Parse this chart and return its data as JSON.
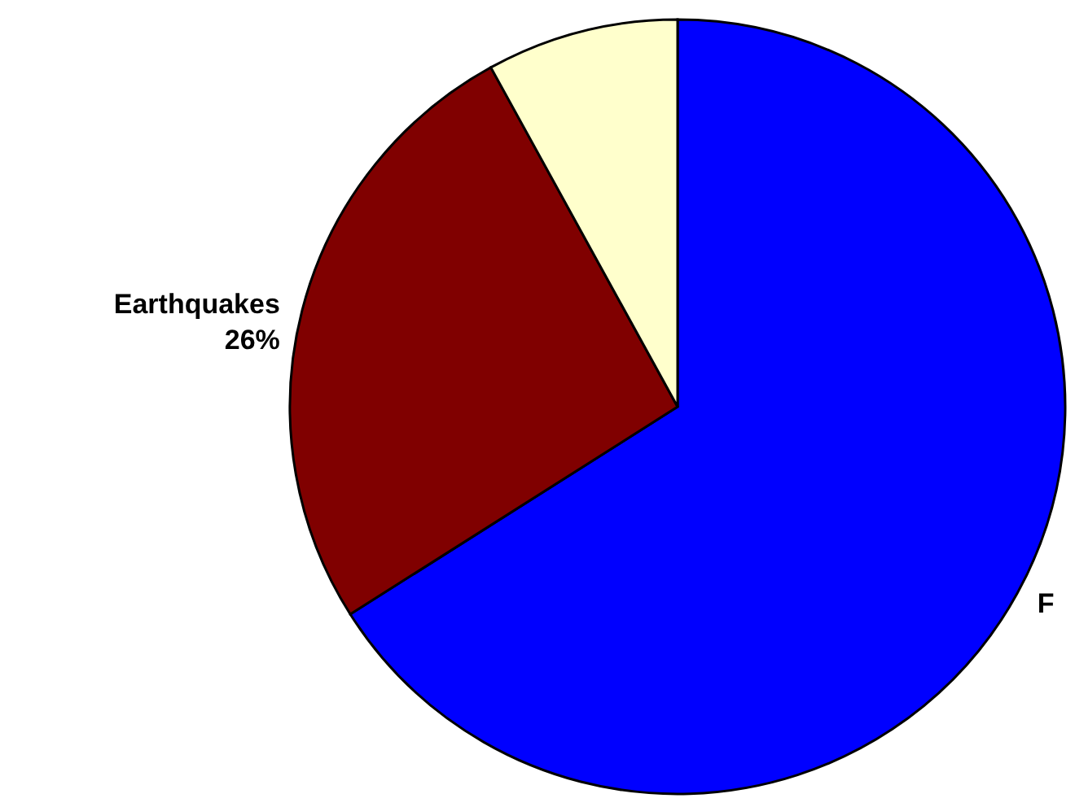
{
  "chart_data": {
    "type": "pie",
    "categories": [
      "F",
      "Earthquakes",
      null
    ],
    "values": [
      66,
      26,
      8
    ],
    "value_labels": [
      null,
      "26%",
      null
    ],
    "colors": [
      "#0000ff",
      "#800000",
      "#ffffcc"
    ]
  }
}
